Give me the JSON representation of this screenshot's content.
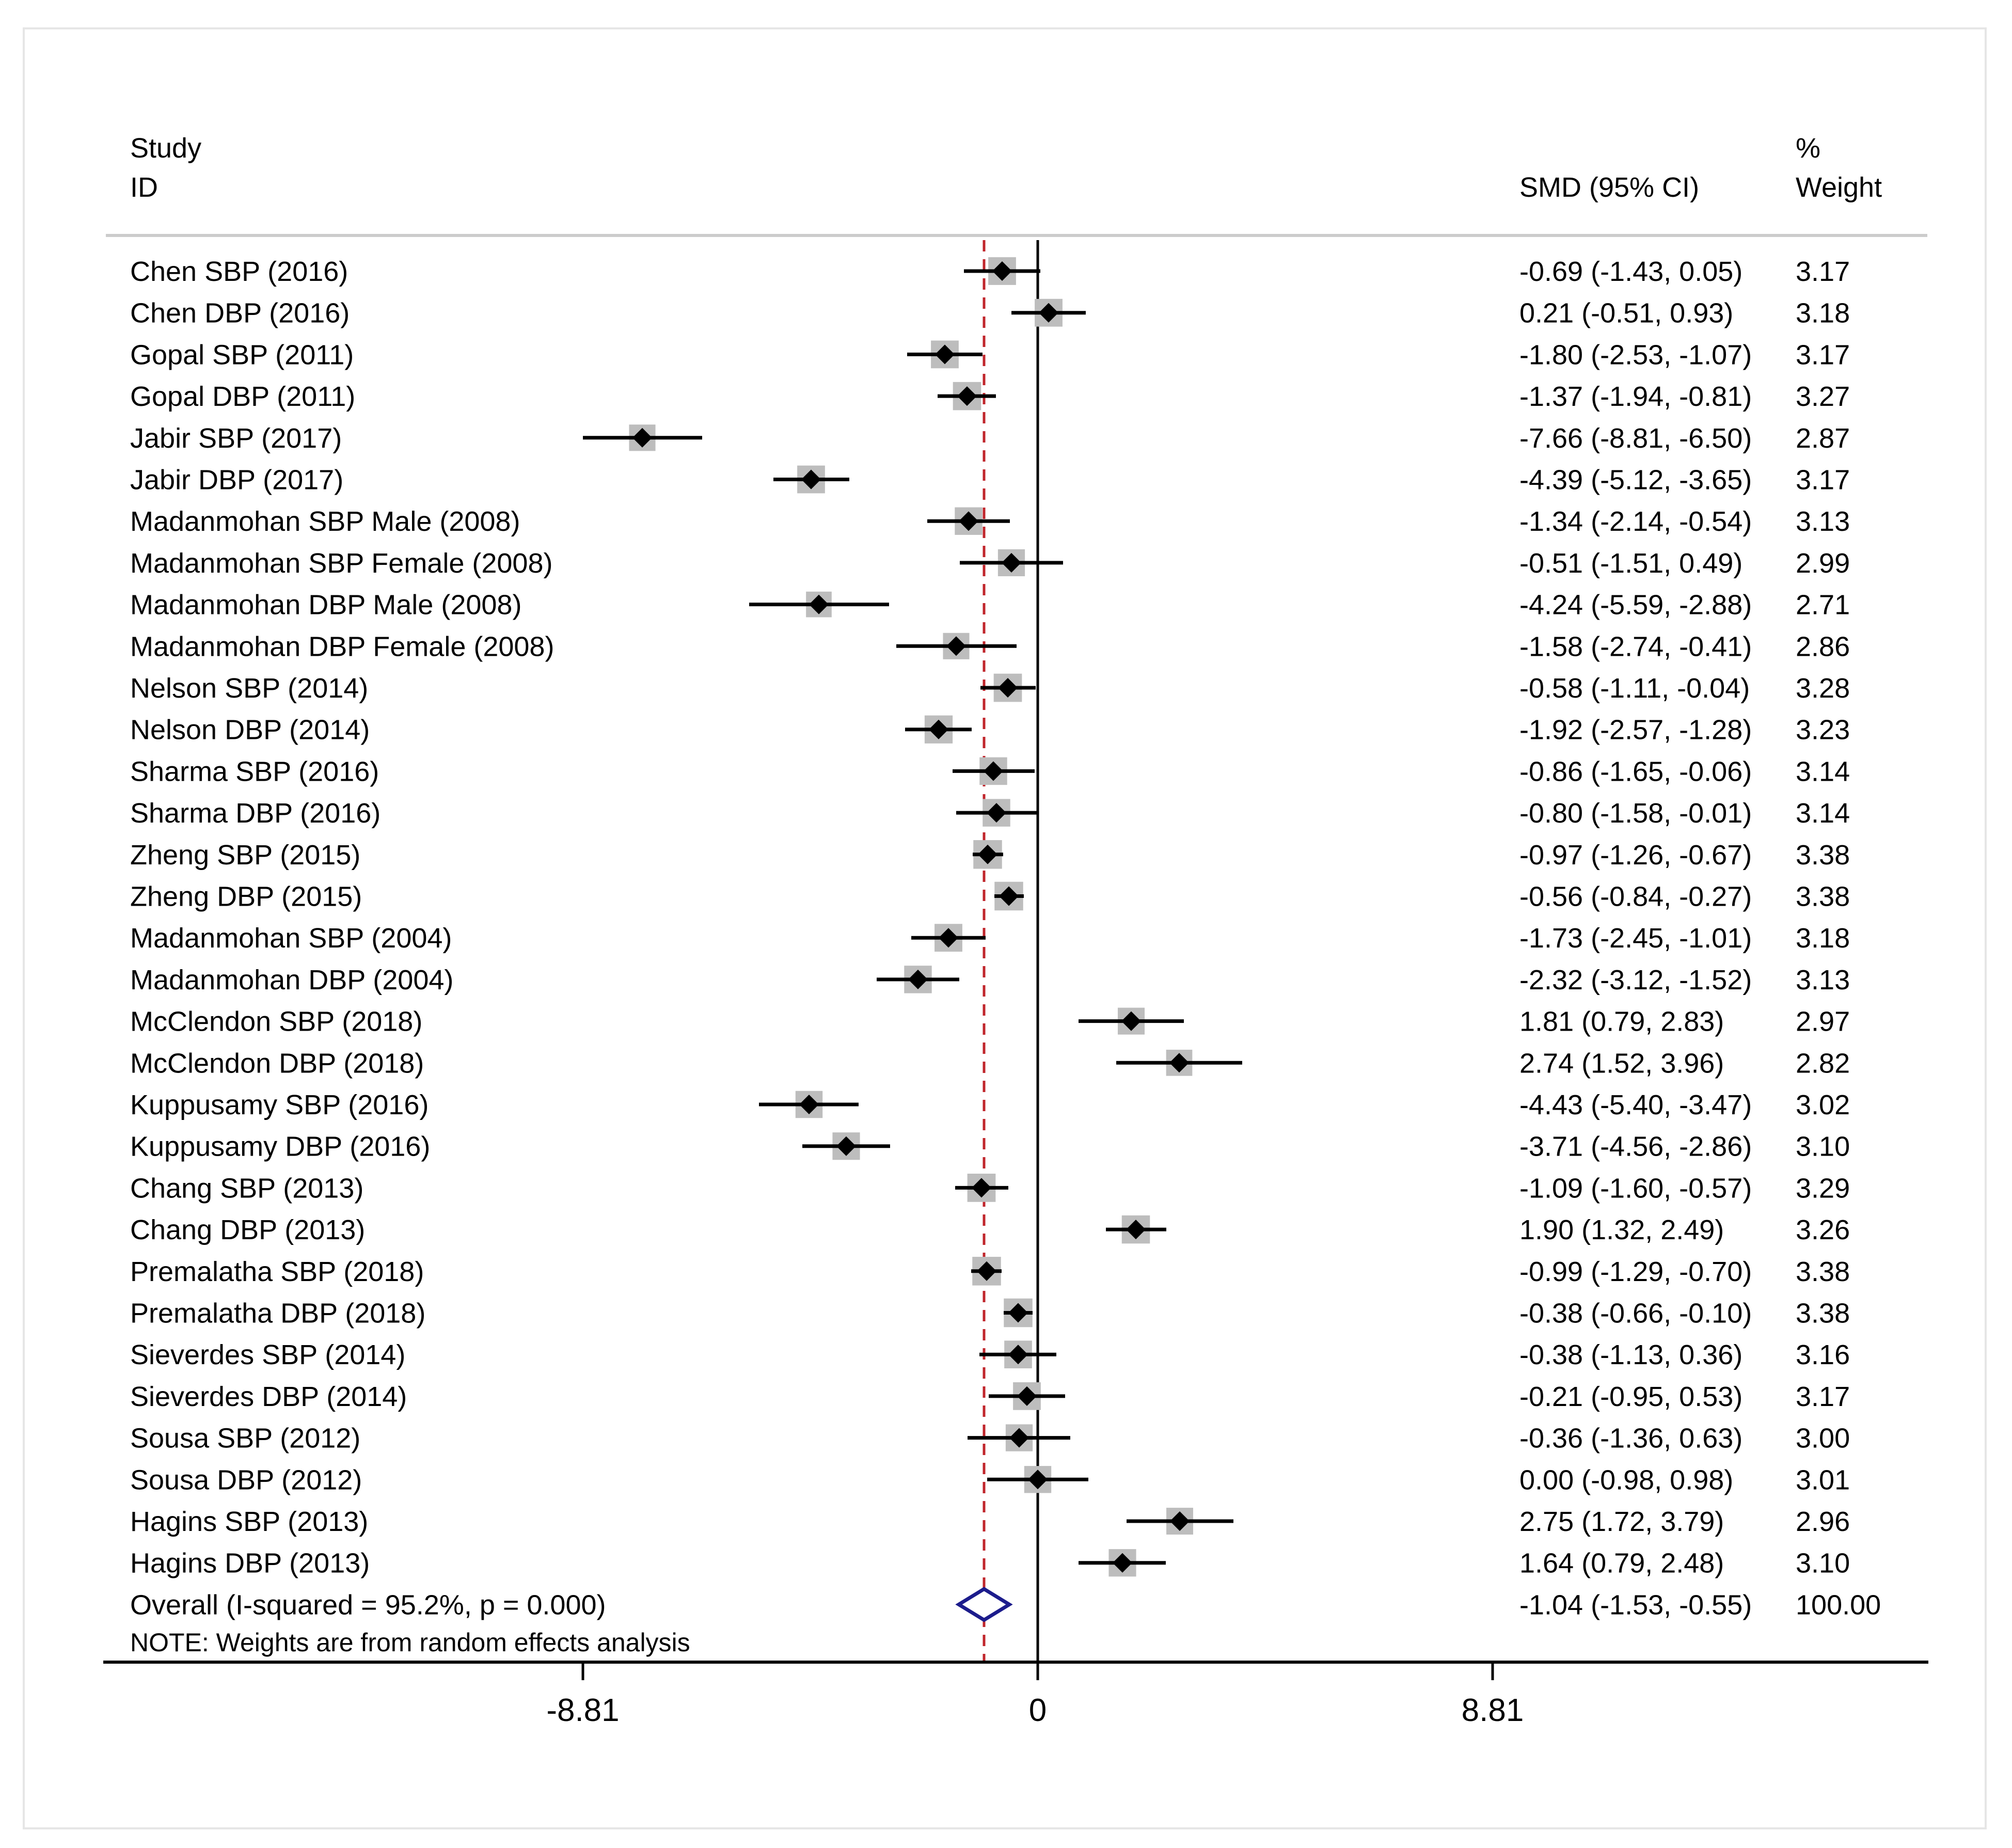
{
  "chart_data": {
    "type": "forest",
    "header": {
      "study_line1": "Study",
      "study_line2": "ID",
      "effect_label": "SMD (95% CI)",
      "weight_line1": "%",
      "weight_line2": "Weight"
    },
    "studies": [
      {
        "label": "Chen SBP (2016)",
        "smd": -0.69,
        "lo": -1.43,
        "hi": 0.05,
        "ci_text": "-0.69 (-1.43, 0.05)",
        "weight": 3.17,
        "weight_text": "3.17"
      },
      {
        "label": "Chen DBP (2016)",
        "smd": 0.21,
        "lo": -0.51,
        "hi": 0.93,
        "ci_text": "0.21 (-0.51, 0.93)",
        "weight": 3.18,
        "weight_text": "3.18"
      },
      {
        "label": "Gopal  SBP (2011)",
        "smd": -1.8,
        "lo": -2.53,
        "hi": -1.07,
        "ci_text": "-1.80 (-2.53, -1.07)",
        "weight": 3.17,
        "weight_text": "3.17"
      },
      {
        "label": "Gopal DBP (2011)",
        "smd": -1.37,
        "lo": -1.94,
        "hi": -0.81,
        "ci_text": "-1.37 (-1.94, -0.81)",
        "weight": 3.27,
        "weight_text": "3.27"
      },
      {
        "label": "Jabir SBP (2017)",
        "smd": -7.66,
        "lo": -8.81,
        "hi": -6.5,
        "ci_text": "-7.66 (-8.81, -6.50)",
        "weight": 2.87,
        "weight_text": "2.87"
      },
      {
        "label": "Jabir DBP (2017)",
        "smd": -4.39,
        "lo": -5.12,
        "hi": -3.65,
        "ci_text": "-4.39 (-5.12, -3.65)",
        "weight": 3.17,
        "weight_text": "3.17"
      },
      {
        "label": "Madanmohan SBP Male (2008)",
        "smd": -1.34,
        "lo": -2.14,
        "hi": -0.54,
        "ci_text": "-1.34 (-2.14, -0.54)",
        "weight": 3.13,
        "weight_text": "3.13"
      },
      {
        "label": "Madanmohan SBP Female (2008)",
        "smd": -0.51,
        "lo": -1.51,
        "hi": 0.49,
        "ci_text": "-0.51 (-1.51, 0.49)",
        "weight": 2.99,
        "weight_text": "2.99"
      },
      {
        "label": "Madanmohan DBP Male (2008)",
        "smd": -4.24,
        "lo": -5.59,
        "hi": -2.88,
        "ci_text": "-4.24 (-5.59, -2.88)",
        "weight": 2.71,
        "weight_text": "2.71"
      },
      {
        "label": "Madanmohan DBP Female (2008)",
        "smd": -1.58,
        "lo": -2.74,
        "hi": -0.41,
        "ci_text": "-1.58 (-2.74, -0.41)",
        "weight": 2.86,
        "weight_text": "2.86"
      },
      {
        "label": "Nelson SBP (2014)",
        "smd": -0.58,
        "lo": -1.11,
        "hi": -0.04,
        "ci_text": "-0.58 (-1.11, -0.04)",
        "weight": 3.28,
        "weight_text": "3.28"
      },
      {
        "label": "Nelson DBP (2014)",
        "smd": -1.92,
        "lo": -2.57,
        "hi": -1.28,
        "ci_text": "-1.92 (-2.57, -1.28)",
        "weight": 3.23,
        "weight_text": "3.23"
      },
      {
        "label": "Sharma SBP (2016)",
        "smd": -0.86,
        "lo": -1.65,
        "hi": -0.06,
        "ci_text": "-0.86 (-1.65, -0.06)",
        "weight": 3.14,
        "weight_text": "3.14"
      },
      {
        "label": "Sharma DBP (2016)",
        "smd": -0.8,
        "lo": -1.58,
        "hi": -0.01,
        "ci_text": "-0.80 (-1.58, -0.01)",
        "weight": 3.14,
        "weight_text": "3.14"
      },
      {
        "label": "Zheng SBP (2015)",
        "smd": -0.97,
        "lo": -1.26,
        "hi": -0.67,
        "ci_text": "-0.97 (-1.26, -0.67)",
        "weight": 3.38,
        "weight_text": "3.38"
      },
      {
        "label": "Zheng DBP (2015)",
        "smd": -0.56,
        "lo": -0.84,
        "hi": -0.27,
        "ci_text": "-0.56 (-0.84, -0.27)",
        "weight": 3.38,
        "weight_text": "3.38"
      },
      {
        "label": "Madanmohan  SBP (2004)",
        "smd": -1.73,
        "lo": -2.45,
        "hi": -1.01,
        "ci_text": "-1.73 (-2.45, -1.01)",
        "weight": 3.18,
        "weight_text": "3.18"
      },
      {
        "label": "Madanmohan DBP (2004)",
        "smd": -2.32,
        "lo": -3.12,
        "hi": -1.52,
        "ci_text": "-2.32 (-3.12, -1.52)",
        "weight": 3.13,
        "weight_text": "3.13"
      },
      {
        "label": "McClendon SBP (2018)",
        "smd": 1.81,
        "lo": 0.79,
        "hi": 2.83,
        "ci_text": "1.81 (0.79, 2.83)",
        "weight": 2.97,
        "weight_text": "2.97"
      },
      {
        "label": "McClendon  DBP (2018)",
        "smd": 2.74,
        "lo": 1.52,
        "hi": 3.96,
        "ci_text": "2.74 (1.52, 3.96)",
        "weight": 2.82,
        "weight_text": "2.82"
      },
      {
        "label": "Kuppusamy SBP  (2016)",
        "smd": -4.43,
        "lo": -5.4,
        "hi": -3.47,
        "ci_text": "-4.43 (-5.40, -3.47)",
        "weight": 3.02,
        "weight_text": "3.02"
      },
      {
        "label": "Kuppusamy  DBP (2016)",
        "smd": -3.71,
        "lo": -4.56,
        "hi": -2.86,
        "ci_text": "-3.71 (-4.56, -2.86)",
        "weight": 3.1,
        "weight_text": "3.10"
      },
      {
        "label": "Chang SBP (2013)",
        "smd": -1.09,
        "lo": -1.6,
        "hi": -0.57,
        "ci_text": "-1.09 (-1.60, -0.57)",
        "weight": 3.29,
        "weight_text": "3.29"
      },
      {
        "label": "Chang DBP (2013)",
        "smd": 1.9,
        "lo": 1.32,
        "hi": 2.49,
        "ci_text": "1.90 (1.32, 2.49)",
        "weight": 3.26,
        "weight_text": "3.26"
      },
      {
        "label": "Premalatha  SBP (2018)",
        "smd": -0.99,
        "lo": -1.29,
        "hi": -0.7,
        "ci_text": "-0.99 (-1.29, -0.70)",
        "weight": 3.38,
        "weight_text": "3.38"
      },
      {
        "label": "Premalatha DBP  (2018)",
        "smd": -0.38,
        "lo": -0.66,
        "hi": -0.1,
        "ci_text": "-0.38 (-0.66, -0.10)",
        "weight": 3.38,
        "weight_text": "3.38"
      },
      {
        "label": "Sieverdes SBP  (2014)",
        "smd": -0.38,
        "lo": -1.13,
        "hi": 0.36,
        "ci_text": "-0.38 (-1.13, 0.36)",
        "weight": 3.16,
        "weight_text": "3.16"
      },
      {
        "label": "Sieverdes  DBP (2014)",
        "smd": -0.21,
        "lo": -0.95,
        "hi": 0.53,
        "ci_text": "-0.21 (-0.95, 0.53)",
        "weight": 3.17,
        "weight_text": "3.17"
      },
      {
        "label": "Sousa SBP (2012)",
        "smd": -0.36,
        "lo": -1.36,
        "hi": 0.63,
        "ci_text": "-0.36 (-1.36, 0.63)",
        "weight": 3.0,
        "weight_text": "3.00"
      },
      {
        "label": "Sousa DBP (2012)",
        "smd": 0.0,
        "lo": -0.98,
        "hi": 0.98,
        "ci_text": "0.00 (-0.98, 0.98)",
        "weight": 3.01,
        "weight_text": "3.01"
      },
      {
        "label": "Hagins SBP (2013)",
        "smd": 2.75,
        "lo": 1.72,
        "hi": 3.79,
        "ci_text": "2.75 (1.72, 3.79)",
        "weight": 2.96,
        "weight_text": "2.96"
      },
      {
        "label": "Hagins DBP (2013)",
        "smd": 1.64,
        "lo": 0.79,
        "hi": 2.48,
        "ci_text": "1.64 (0.79, 2.48)",
        "weight": 3.1,
        "weight_text": "3.10"
      }
    ],
    "overall": {
      "label": "Overall  (I-squared = 95.2%, p = 0.000)",
      "smd": -1.04,
      "lo": -1.53,
      "hi": -0.55,
      "ci_text": "-1.04 (-1.53, -0.55)",
      "weight_text": "100.00"
    },
    "note": "NOTE: Weights are from random effects analysis",
    "x_axis": {
      "range": [
        -17.6,
        17.25
      ],
      "ticks": [
        -8.81,
        0,
        8.81
      ],
      "tick_labels": [
        "-8.81",
        "0",
        "8.81"
      ],
      "null_line": 0,
      "overall_reference_line": -1.04
    },
    "colors": {
      "marker": "#000000",
      "weight_box": "#bdbdbd",
      "overall_line": "#c0262c",
      "overall_diamond": "#1c1c8c",
      "frame": "#e6e6e6",
      "header_rule": "#cccccc"
    }
  }
}
